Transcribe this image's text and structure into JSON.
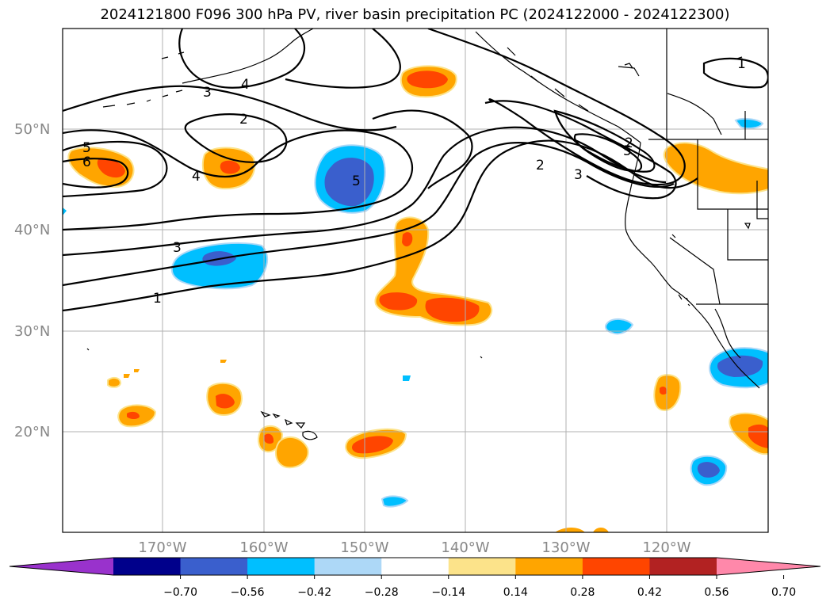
{
  "title": "2024121800 F096 300 hPa PV, river basin precipitation PC (2024122000 - 2024122300)",
  "map": {
    "lat_labels": [
      "50°N",
      "40°N",
      "30°N",
      "20°N"
    ],
    "lon_labels": [
      "170°W",
      "160°W",
      "150°W",
      "140°W",
      "130°W",
      "120°W"
    ],
    "gridlines": true,
    "lat_range": [
      10,
      60
    ],
    "lon_range": [
      -180,
      -110
    ]
  },
  "pv_contour_labels": [
    "1",
    "2",
    "3",
    "4",
    "5",
    "6",
    "5",
    "4",
    "3",
    "2",
    "3",
    "5",
    "2",
    "1"
  ],
  "colorbar": {
    "ticks": [
      "−0.70",
      "−0.56",
      "−0.42",
      "−0.28",
      "−0.14",
      "0.14",
      "0.28",
      "0.42",
      "0.56",
      "0.70"
    ],
    "colors": [
      "#9932cc",
      "#00008b",
      "#3a5fcd",
      "#00bfff",
      "#add8f7",
      "#ffffff",
      "#fce38a",
      "#ffa500",
      "#ff4500",
      "#b22222",
      "#ff88aa"
    ],
    "extend": "both"
  },
  "colors": {
    "pos_low": "#ffa500",
    "pos_mid": "#ff4500",
    "neg_low": "#00bfff",
    "neg_mid": "#3a5fcd",
    "pale_yellow": "#fce38a",
    "pale_blue": "#add8f7"
  }
}
